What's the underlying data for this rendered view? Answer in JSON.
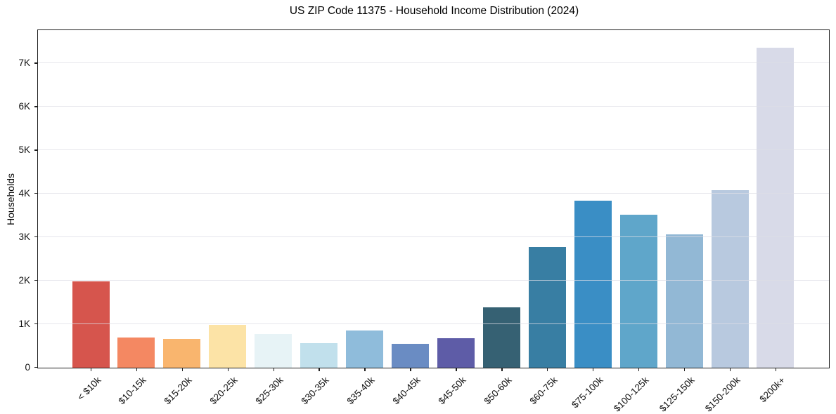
{
  "chart_data": {
    "type": "bar",
    "title": "US ZIP Code 11375 - Household Income Distribution (2024)",
    "xlabel": "",
    "ylabel": "Households",
    "categories": [
      "< $10k",
      "$10-15k",
      "$15-20k",
      "$20-25k",
      "$25-30k",
      "$30-35k",
      "$35-40k",
      "$40-45k",
      "$45-50k",
      "$50-60k",
      "$60-75k",
      "$75-100k",
      "$100-125k",
      "$125-150k",
      "$150-200k",
      "$200k+"
    ],
    "values": [
      1980,
      700,
      665,
      990,
      780,
      570,
      855,
      545,
      685,
      1395,
      2770,
      3840,
      3520,
      3060,
      4090,
      7370
    ],
    "bar_colors": [
      "#d6554d",
      "#f48862",
      "#f9b56e",
      "#fce3a6",
      "#e7f3f6",
      "#c1e0ec",
      "#8fbcdb",
      "#6a8cc3",
      "#5e5ca7",
      "#366173",
      "#387ea3",
      "#3a8ec5",
      "#5fa6ca",
      "#92b8d5",
      "#b8c9df",
      "#d8dae8"
    ],
    "yticks": {
      "values": [
        0,
        1000,
        2000,
        3000,
        4000,
        5000,
        6000,
        7000
      ],
      "labels": [
        "0",
        "1K",
        "2K",
        "3K",
        "4K",
        "5K",
        "6K",
        "7K"
      ]
    },
    "ylim": [
      0,
      7750
    ],
    "grid": "horizontal",
    "grid_on_top": true,
    "legend": "none",
    "background_color": "#ffffff",
    "spine_color": "#1f1f1f"
  }
}
